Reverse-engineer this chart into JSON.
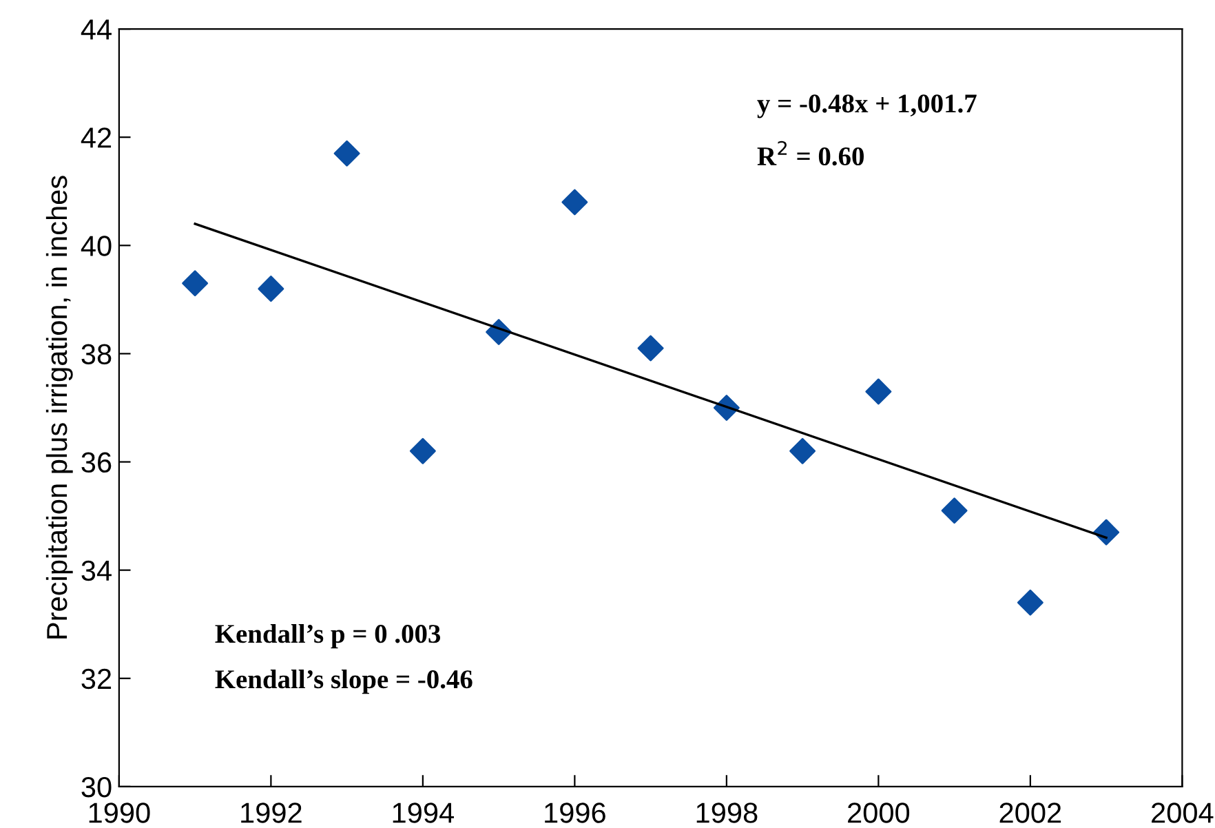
{
  "chart_data": {
    "type": "scatter",
    "ylabel": "Precipitation plus irrigation, in inches",
    "x": [
      1991,
      1992,
      1993,
      1994,
      1995,
      1996,
      1997,
      1998,
      1999,
      2000,
      2001,
      2002,
      2003
    ],
    "series": [
      {
        "color": "#0a4ea2",
        "marker": "diamond",
        "values": [
          39.3,
          39.2,
          41.7,
          36.2,
          38.4,
          40.8,
          38.1,
          37.0,
          36.2,
          37.3,
          35.1,
          33.4,
          34.7
        ]
      },
      {
        "type": "line",
        "color": "#000000",
        "x": [
          1991,
          2003
        ],
        "values": [
          40.4,
          34.6
        ]
      }
    ],
    "annotations": [
      "y = -0.48x + 1,001.7",
      "R$^{2}$ = 0.60",
      "Kendall’s p = 0 .003",
      "Kendall’s slope = -0.46"
    ],
    "xlim": [
      1990,
      2004
    ],
    "xticks": [
      1990,
      1992,
      1994,
      1996,
      1998,
      2000,
      2002,
      2004
    ],
    "ylim": [
      30,
      44
    ],
    "yticks": [
      30,
      32,
      34,
      36,
      38,
      40,
      42,
      44
    ],
    "grid": false,
    "legend": false
  }
}
